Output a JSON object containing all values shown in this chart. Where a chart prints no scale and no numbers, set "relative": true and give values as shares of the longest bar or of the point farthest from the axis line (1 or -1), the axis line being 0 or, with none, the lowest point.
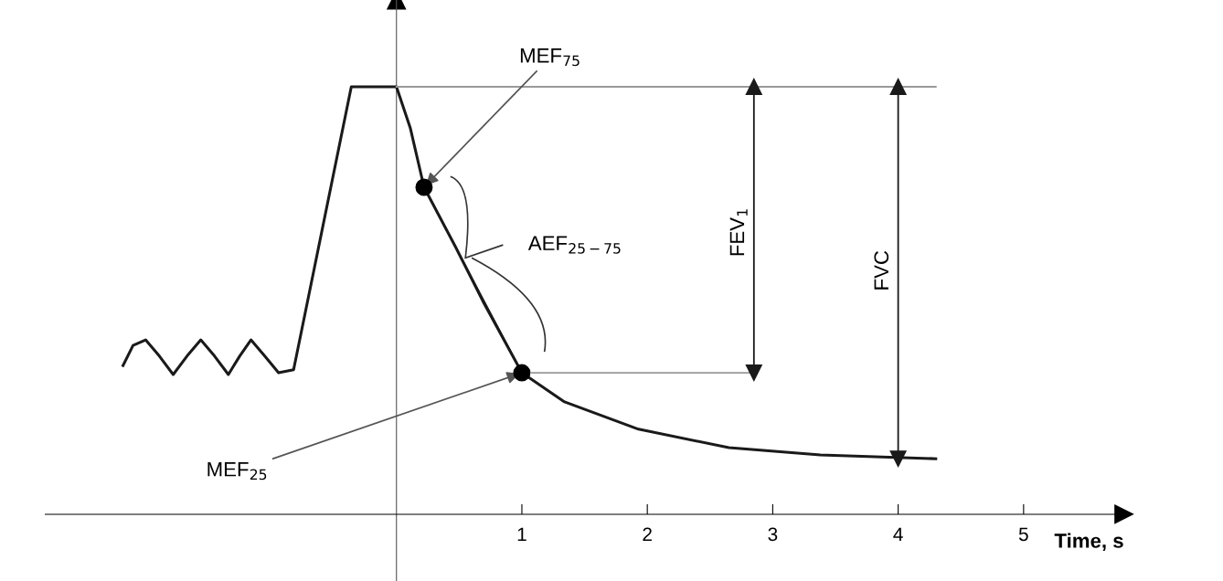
{
  "chart_data": {
    "type": "line",
    "relative": true,
    "xlabel": "Time, s",
    "xlim": [
      -2.8,
      5.8
    ],
    "xticks": [
      1,
      2,
      3,
      4,
      5
    ],
    "tick_labels": "x",
    "grid": false,
    "legend": false,
    "series": [
      {
        "color": "#1a1a1a",
        "x": [
          -2.18,
          -2.1,
          -2.0,
          -1.89,
          -1.78,
          -1.67,
          -1.56,
          -1.45,
          -1.34,
          -1.25,
          -1.16,
          -1.05,
          -0.94,
          -0.82,
          -0.36,
          0,
          0.11,
          0.22,
          0.47,
          0.69,
          1.0,
          1.34,
          1.93,
          2.65,
          3.38,
          4.3
        ],
        "values": [
          0.348,
          0.395,
          0.408,
          0.37,
          0.327,
          0.37,
          0.408,
          0.37,
          0.327,
          0.37,
          0.408,
          0.37,
          0.331,
          0.338,
          1.0,
          1.0,
          0.904,
          0.765,
          0.626,
          0.498,
          0.331,
          0.263,
          0.199,
          0.156,
          0.139,
          0.13
        ]
      },
      {
        "color": "#1a1a1a",
        "x": [
          0.22,
          1.0
        ],
        "values": [
          0.765,
          0.331
        ]
      },
      {
        "type": "scatter",
        "color": "#000000",
        "marker": "circle",
        "x": [
          0.22,
          1.0
        ],
        "values": [
          0.765,
          0.331
        ]
      },
      {
        "color": "#999999",
        "x": [
          0,
          4.3
        ],
        "values": [
          1.0,
          1.0
        ]
      },
      {
        "color": "#999999",
        "x": [
          1.08,
          2.85
        ],
        "values": [
          0.331,
          0.331
        ]
      },
      {
        "color": "#1a1a1a",
        "marker": "triangle",
        "x": [
          2.85,
          2.85
        ],
        "values": [
          1.0,
          0.331
        ]
      },
      {
        "color": "#1a1a1a",
        "marker": "triangle",
        "x": [
          4.0,
          4.0
        ],
        "values": [
          1.0,
          0.13
        ]
      }
    ],
    "annotations": [
      {
        "text": "MEF$_{75}$",
        "x": 0.22,
        "y": 0.765
      },
      {
        "text": "MEF$_{25}$",
        "x": 1.0,
        "y": 0.331
      },
      "AEF$_{25−75}$",
      {
        "text": "FEV$_{1}$",
        "x": 2.85,
        "y": 0.66
      },
      {
        "text": "FVC",
        "x": 4.0,
        "y": 0.57
      }
    ]
  }
}
